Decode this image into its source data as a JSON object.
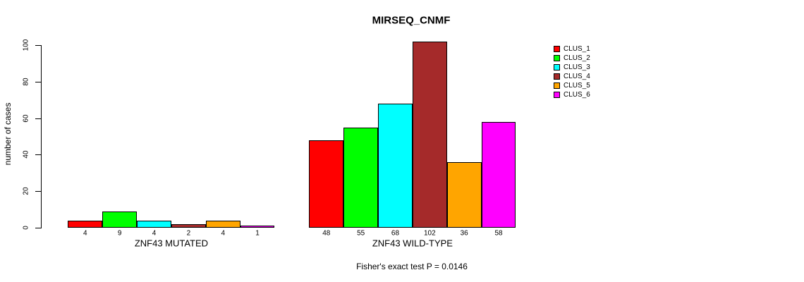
{
  "chart_data": {
    "type": "bar",
    "title": "MIRSEQ_CNMF",
    "ylabel": "number of cases",
    "xlabel": "",
    "annotation": "Fisher's exact test P = 0.0146",
    "groups": [
      "ZNF43 MUTATED",
      "ZNF43 WILD-TYPE"
    ],
    "series": [
      {
        "name": "CLUS_1",
        "color": "#FF0000",
        "values": [
          4,
          48
        ]
      },
      {
        "name": "CLUS_2",
        "color": "#00FF00",
        "values": [
          9,
          55
        ]
      },
      {
        "name": "CLUS_3",
        "color": "#00FFFF",
        "values": [
          4,
          68
        ]
      },
      {
        "name": "CLUS_4",
        "color": "#A52A2A",
        "values": [
          2,
          102
        ]
      },
      {
        "name": "CLUS_5",
        "color": "#FFA500",
        "values": [
          4,
          36
        ]
      },
      {
        "name": "CLUS_6",
        "color": "#FF00FF",
        "values": [
          1,
          58
        ]
      }
    ],
    "bar_value_labels": [
      [
        "4",
        "9",
        "4",
        "2",
        "4",
        "1"
      ],
      [
        "48",
        "55",
        "68",
        "102",
        "36",
        "58"
      ]
    ],
    "yticks": [
      0,
      20,
      40,
      60,
      80,
      100
    ],
    "ylim": [
      0,
      102
    ],
    "grid": false,
    "legend_position": "top-right-outside",
    "background": "#FFFFFF",
    "axis_color": "#000000"
  }
}
